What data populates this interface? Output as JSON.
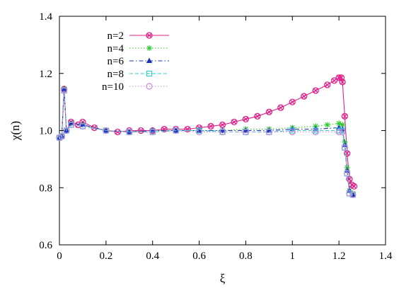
{
  "chart_data": {
    "type": "line",
    "title": "",
    "xlabel": "ξ",
    "ylabel": "χ(n)",
    "xlim": [
      0,
      1.4
    ],
    "ylim": [
      0.6,
      1.4
    ],
    "xticks": [
      "0",
      "0.2",
      "0.4",
      "0.6",
      "0.8",
      "1",
      "1.2",
      "1.4"
    ],
    "yticks": [
      "0.6",
      "0.8",
      "1.0",
      "1.2",
      "1.4"
    ],
    "xtick_values": [
      0,
      0.2,
      0.4,
      0.6,
      0.8,
      1.0,
      1.2,
      1.4
    ],
    "ytick_values": [
      0.6,
      0.8,
      1.0,
      1.2,
      1.4
    ],
    "grid": false,
    "legend_position": "top-left",
    "series": [
      {
        "name": "n=2",
        "color": "#e0218a",
        "marker": "circle-x",
        "line": "solid",
        "points": [
          [
            0.0,
            0.975
          ],
          [
            0.01,
            0.98
          ],
          [
            0.02,
            1.145
          ],
          [
            0.03,
            1.0
          ],
          [
            0.05,
            1.03
          ],
          [
            0.08,
            1.02
          ],
          [
            0.1,
            1.03
          ],
          [
            0.15,
            1.01
          ],
          [
            0.2,
            1.0
          ],
          [
            0.25,
            0.995
          ],
          [
            0.3,
            1.0
          ],
          [
            0.35,
            1.0
          ],
          [
            0.4,
            1.0
          ],
          [
            0.45,
            1.005
          ],
          [
            0.5,
            1.005
          ],
          [
            0.55,
            1.005
          ],
          [
            0.6,
            1.01
          ],
          [
            0.65,
            1.015
          ],
          [
            0.7,
            1.02
          ],
          [
            0.75,
            1.03
          ],
          [
            0.8,
            1.04
          ],
          [
            0.85,
            1.05
          ],
          [
            0.9,
            1.065
          ],
          [
            0.95,
            1.08
          ],
          [
            1.0,
            1.1
          ],
          [
            1.05,
            1.12
          ],
          [
            1.1,
            1.14
          ],
          [
            1.15,
            1.16
          ],
          [
            1.18,
            1.175
          ],
          [
            1.2,
            1.185
          ],
          [
            1.21,
            1.185
          ],
          [
            1.215,
            1.17
          ],
          [
            1.225,
            1.05
          ],
          [
            1.235,
            0.92
          ],
          [
            1.245,
            0.83
          ],
          [
            1.255,
            0.81
          ],
          [
            1.265,
            0.805
          ]
        ]
      },
      {
        "name": "n=4",
        "color": "#33cc33",
        "marker": "star",
        "line": "dotted",
        "points": [
          [
            0.0,
            0.975
          ],
          [
            0.01,
            0.98
          ],
          [
            0.02,
            1.145
          ],
          [
            0.03,
            1.0
          ],
          [
            0.05,
            1.025
          ],
          [
            0.1,
            1.02
          ],
          [
            0.2,
            1.0
          ],
          [
            0.3,
            0.995
          ],
          [
            0.4,
            1.0
          ],
          [
            0.5,
            1.0
          ],
          [
            0.6,
            1.0
          ],
          [
            0.7,
            1.0
          ],
          [
            0.8,
            1.005
          ],
          [
            0.9,
            1.005
          ],
          [
            1.0,
            1.01
          ],
          [
            1.1,
            1.015
          ],
          [
            1.15,
            1.02
          ],
          [
            1.2,
            1.025
          ],
          [
            1.215,
            1.02
          ],
          [
            1.225,
            0.96
          ],
          [
            1.235,
            0.87
          ],
          [
            1.245,
            0.79
          ],
          [
            1.26,
            0.78
          ]
        ]
      },
      {
        "name": "n=6",
        "color": "#1f2fbf",
        "marker": "triangle",
        "line": "dash-dot",
        "points": [
          [
            0.0,
            0.975
          ],
          [
            0.01,
            0.98
          ],
          [
            0.02,
            1.145
          ],
          [
            0.03,
            1.0
          ],
          [
            0.05,
            1.025
          ],
          [
            0.1,
            1.02
          ],
          [
            0.2,
            1.0
          ],
          [
            0.3,
            0.995
          ],
          [
            0.4,
            1.0
          ],
          [
            0.5,
            1.0
          ],
          [
            0.6,
            1.0
          ],
          [
            0.7,
            1.0
          ],
          [
            0.8,
            1.0
          ],
          [
            0.9,
            1.0
          ],
          [
            1.0,
            1.005
          ],
          [
            1.1,
            1.005
          ],
          [
            1.2,
            1.01
          ],
          [
            1.215,
            1.005
          ],
          [
            1.225,
            0.95
          ],
          [
            1.235,
            0.86
          ],
          [
            1.245,
            0.79
          ],
          [
            1.26,
            0.775
          ]
        ]
      },
      {
        "name": "n=8",
        "color": "#33cccc",
        "marker": "square",
        "line": "dashed",
        "points": [
          [
            0.0,
            0.975
          ],
          [
            0.01,
            0.98
          ],
          [
            0.02,
            1.14
          ],
          [
            0.03,
            1.0
          ],
          [
            0.05,
            1.02
          ],
          [
            0.1,
            1.015
          ],
          [
            0.2,
            1.0
          ],
          [
            0.3,
            0.995
          ],
          [
            0.4,
            0.995
          ],
          [
            0.5,
            1.0
          ],
          [
            0.6,
            1.0
          ],
          [
            0.7,
            0.995
          ],
          [
            0.8,
            0.995
          ],
          [
            0.9,
            0.995
          ],
          [
            1.0,
            1.0
          ],
          [
            1.1,
            1.0
          ],
          [
            1.2,
            1.0
          ],
          [
            1.215,
            1.0
          ],
          [
            1.225,
            0.94
          ],
          [
            1.235,
            0.85
          ],
          [
            1.245,
            0.78
          ],
          [
            1.26,
            0.775
          ]
        ]
      },
      {
        "name": "n=10",
        "color": "#c58be0",
        "marker": "circle",
        "line": "dotted",
        "points": [
          [
            0.0,
            0.975
          ],
          [
            0.01,
            0.98
          ],
          [
            0.02,
            1.14
          ],
          [
            0.03,
            1.0
          ],
          [
            0.05,
            1.02
          ],
          [
            0.1,
            1.015
          ],
          [
            0.2,
            1.0
          ],
          [
            0.3,
            0.995
          ],
          [
            0.4,
            0.995
          ],
          [
            0.5,
            1.0
          ],
          [
            0.6,
            0.995
          ],
          [
            0.7,
            0.995
          ],
          [
            0.8,
            0.995
          ],
          [
            0.9,
            0.995
          ],
          [
            1.0,
            0.995
          ],
          [
            1.1,
            0.995
          ],
          [
            1.2,
            0.995
          ],
          [
            1.215,
            0.995
          ],
          [
            1.225,
            0.94
          ],
          [
            1.235,
            0.85
          ],
          [
            1.245,
            0.78
          ],
          [
            1.26,
            0.775
          ]
        ]
      }
    ]
  }
}
